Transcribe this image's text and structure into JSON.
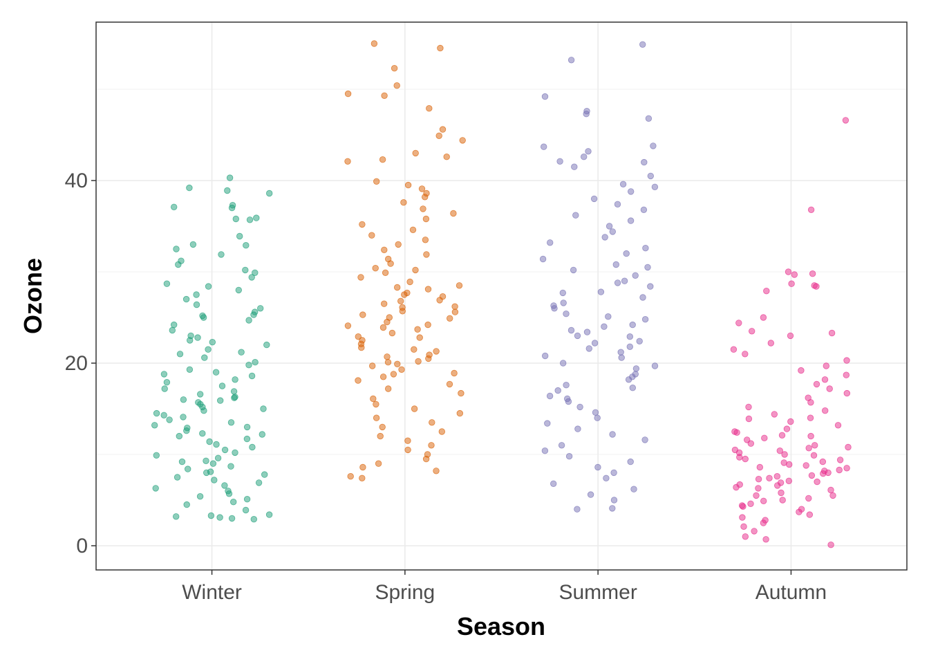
{
  "chart_data": {
    "type": "scatter",
    "subtype": "jitter-strip",
    "title": "",
    "xlabel": "Season",
    "ylabel": "Ozone",
    "categories": [
      "Winter",
      "Spring",
      "Summer",
      "Autumn"
    ],
    "ylim": [
      -2.65,
      57.35
    ],
    "yticks": [
      0,
      20,
      40
    ],
    "ytick_labels": [
      "0",
      "20",
      "40"
    ],
    "grid": true,
    "legend": "none",
    "series": [
      {
        "name": "Winter",
        "color": "#1B9E77",
        "values": [
          40.3,
          39.2,
          38.9,
          38.6,
          37.3,
          37.0,
          37.1,
          35.9,
          35.8,
          35.7,
          33.9,
          33.0,
          32.9,
          32.5,
          31.9,
          31.2,
          30.8,
          30.2,
          29.9,
          29.4,
          28.7,
          28.4,
          28.0,
          27.5,
          27.0,
          26.4,
          26.0,
          25.6,
          25.2,
          25.0,
          24.7,
          24.2,
          23.6,
          23.0,
          22.8,
          22.3,
          22.0,
          21.5,
          21.2,
          21.0,
          20.6,
          20.1,
          19.8,
          19.3,
          19.0,
          18.6,
          18.2,
          17.9,
          17.5,
          17.2,
          16.9,
          16.6,
          16.3,
          16.0,
          15.7,
          15.5,
          15.2,
          15.0,
          14.8,
          14.5,
          14.1,
          13.8,
          13.5,
          13.2,
          12.9,
          12.6,
          12.3,
          12.0,
          11.7,
          11.4,
          11.1,
          10.8,
          10.5,
          10.2,
          9.9,
          9.6,
          9.3,
          9.0,
          8.7,
          8.4,
          8.1,
          7.8,
          7.5,
          7.2,
          6.9,
          6.6,
          6.3,
          6.0,
          5.7,
          5.4,
          5.1,
          4.8,
          4.5,
          3.9,
          3.4,
          3.3,
          3.2,
          3.1,
          3.0,
          2.9,
          15.9,
          16.2,
          14.3,
          12.2,
          18.8,
          9.2,
          8.0,
          13.0,
          22.5,
          25.3
        ]
      },
      {
        "name": "Spring",
        "color": "#D95F02",
        "values": [
          55.0,
          54.5,
          52.3,
          50.4,
          49.5,
          49.3,
          47.9,
          45.6,
          44.9,
          44.4,
          43.0,
          42.6,
          42.3,
          42.1,
          39.9,
          39.5,
          39.1,
          38.6,
          38.2,
          37.6,
          36.9,
          36.4,
          35.8,
          35.2,
          34.6,
          34.0,
          33.5,
          33.0,
          32.4,
          31.9,
          31.4,
          30.9,
          30.4,
          29.9,
          29.4,
          28.9,
          28.5,
          28.1,
          27.7,
          27.3,
          26.9,
          26.5,
          26.1,
          25.7,
          25.3,
          24.9,
          24.5,
          24.1,
          23.7,
          23.3,
          22.9,
          22.5,
          22.1,
          21.7,
          21.3,
          20.9,
          20.5,
          20.1,
          19.7,
          19.3,
          18.9,
          18.5,
          18.1,
          17.7,
          17.2,
          16.7,
          16.1,
          15.5,
          15.0,
          14.5,
          14.0,
          13.5,
          13.0,
          12.5,
          12.0,
          11.5,
          11.0,
          10.5,
          10.0,
          9.5,
          9.0,
          8.6,
          8.2,
          7.6,
          7.4,
          27.5,
          26.8,
          25.0,
          24.2,
          22.8,
          21.5,
          20.7,
          19.9,
          28.3,
          30.2,
          23.9,
          25.6,
          26.2,
          20.2,
          18.8
        ]
      },
      {
        "name": "Summer",
        "color": "#7570B3",
        "values": [
          54.9,
          53.2,
          49.2,
          47.6,
          47.3,
          46.8,
          43.8,
          43.7,
          43.2,
          42.6,
          42.1,
          42.0,
          41.5,
          40.5,
          39.6,
          39.3,
          38.8,
          38.0,
          37.4,
          36.8,
          36.2,
          35.6,
          35.0,
          34.4,
          33.8,
          33.2,
          32.6,
          32.0,
          31.4,
          30.8,
          30.2,
          29.6,
          29.0,
          28.4,
          27.8,
          27.2,
          26.6,
          26.0,
          25.4,
          24.8,
          24.2,
          23.6,
          23.0,
          22.4,
          21.8,
          21.2,
          20.6,
          20.0,
          19.4,
          18.8,
          18.2,
          17.6,
          17.0,
          16.4,
          15.8,
          15.2,
          14.6,
          14.0,
          13.4,
          12.8,
          12.2,
          11.6,
          11.0,
          10.4,
          9.8,
          9.2,
          8.6,
          8.0,
          7.4,
          6.8,
          6.2,
          5.6,
          5.0,
          4.1,
          4.0,
          26.3,
          25.1,
          24.0,
          22.9,
          21.6,
          20.8,
          19.7,
          18.5,
          17.3,
          16.1,
          27.7,
          28.8,
          30.5,
          23.4,
          22.2
        ]
      },
      {
        "name": "Autumn",
        "color": "#E7298A",
        "values": [
          46.6,
          36.8,
          30.0,
          29.8,
          29.7,
          28.7,
          28.5,
          28.4,
          27.9,
          25.0,
          24.4,
          23.5,
          23.3,
          23.0,
          22.2,
          21.5,
          21.0,
          20.3,
          19.7,
          19.2,
          18.7,
          18.2,
          17.7,
          17.2,
          16.7,
          16.2,
          15.7,
          15.2,
          14.8,
          14.4,
          14.0,
          13.6,
          13.2,
          12.8,
          12.4,
          12.0,
          11.6,
          11.2,
          10.8,
          10.4,
          10.0,
          9.7,
          9.4,
          9.1,
          8.8,
          8.5,
          8.2,
          7.9,
          7.6,
          7.3,
          7.0,
          6.7,
          6.4,
          6.1,
          5.8,
          5.5,
          5.2,
          4.9,
          4.6,
          4.3,
          4.0,
          3.7,
          3.4,
          3.1,
          2.8,
          2.5,
          2.1,
          1.6,
          1.0,
          0.7,
          0.1,
          9.5,
          8.9,
          8.3,
          10.2,
          11.0,
          7.7,
          6.9,
          12.5,
          13.9,
          5.5,
          9.9,
          8.0,
          10.7,
          6.3,
          7.1,
          8.6,
          9.2,
          10.5,
          11.8,
          7.4,
          6.6,
          12.1,
          5.0,
          4.4
        ]
      }
    ]
  }
}
